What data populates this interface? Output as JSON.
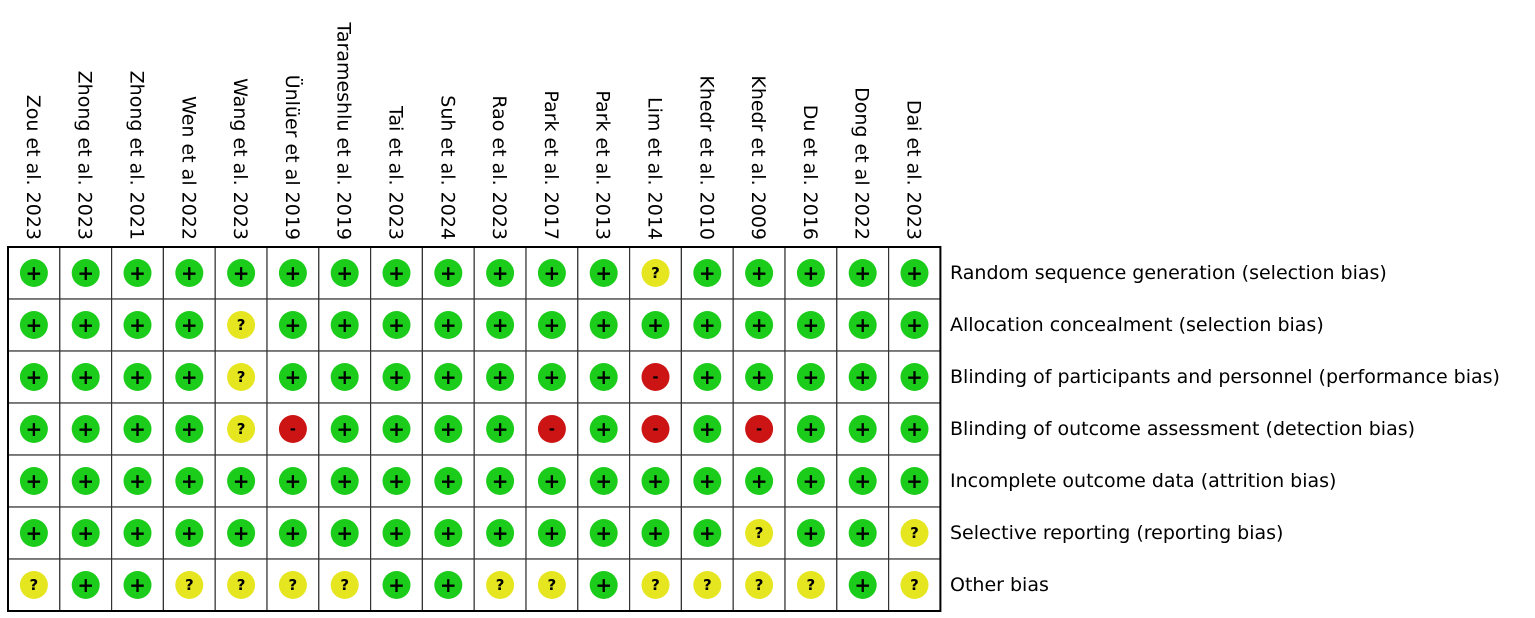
{
  "chart_data": {
    "type": "table",
    "studies": [
      "Zou et al. 2023",
      "Zhong et al. 2023",
      "Zhong et al. 2021",
      "Wen et al 2022",
      "Wang et al. 2023",
      "Ünlüer et al 2019",
      "Tarameshlu et al. 2019",
      "Tai et al. 2023",
      "Suh et al. 2024",
      "Rao et al. 2023",
      "Park et al. 2017",
      "Park et al. 2013",
      "Lim et al. 2014",
      "Khedr et al. 2010",
      "Khedr et al. 2009",
      "Du et al. 2016",
      "Dong et al 2022",
      "Dai et al. 2023"
    ],
    "domains": [
      "Random sequence generation (selection bias)",
      "Allocation concealment (selection bias)",
      "Blinding of participants and personnel (performance bias)",
      "Blinding of outcome assessment (detection bias)",
      "Incomplete outcome data (attrition bias)",
      "Selective reporting (reporting bias)",
      "Other bias"
    ],
    "judgement_symbols": {
      "low": "+",
      "unclear": "?",
      "high": "-"
    },
    "judgement_colors": {
      "low": "#1bcc1b",
      "unclear": "#e6e620",
      "high": "#cc1414"
    },
    "judgements": [
      [
        "low",
        "low",
        "low",
        "low",
        "low",
        "low",
        "low",
        "low",
        "low",
        "low",
        "low",
        "low",
        "unclear",
        "low",
        "low",
        "low",
        "low",
        "low"
      ],
      [
        "low",
        "low",
        "low",
        "low",
        "unclear",
        "low",
        "low",
        "low",
        "low",
        "low",
        "low",
        "low",
        "low",
        "low",
        "low",
        "low",
        "low",
        "low"
      ],
      [
        "low",
        "low",
        "low",
        "low",
        "unclear",
        "low",
        "low",
        "low",
        "low",
        "low",
        "low",
        "low",
        "high",
        "low",
        "low",
        "low",
        "low",
        "low"
      ],
      [
        "low",
        "low",
        "low",
        "low",
        "unclear",
        "high",
        "low",
        "low",
        "low",
        "low",
        "high",
        "low",
        "high",
        "low",
        "high",
        "low",
        "low",
        "low"
      ],
      [
        "low",
        "low",
        "low",
        "low",
        "low",
        "low",
        "low",
        "low",
        "low",
        "low",
        "low",
        "low",
        "low",
        "low",
        "low",
        "low",
        "low",
        "low"
      ],
      [
        "low",
        "low",
        "low",
        "low",
        "low",
        "low",
        "low",
        "low",
        "low",
        "low",
        "low",
        "low",
        "low",
        "low",
        "unclear",
        "low",
        "low",
        "unclear"
      ],
      [
        "unclear",
        "low",
        "low",
        "unclear",
        "unclear",
        "unclear",
        "unclear",
        "low",
        "low",
        "unclear",
        "unclear",
        "low",
        "unclear",
        "unclear",
        "unclear",
        "unclear",
        "low",
        "unclear"
      ]
    ]
  }
}
